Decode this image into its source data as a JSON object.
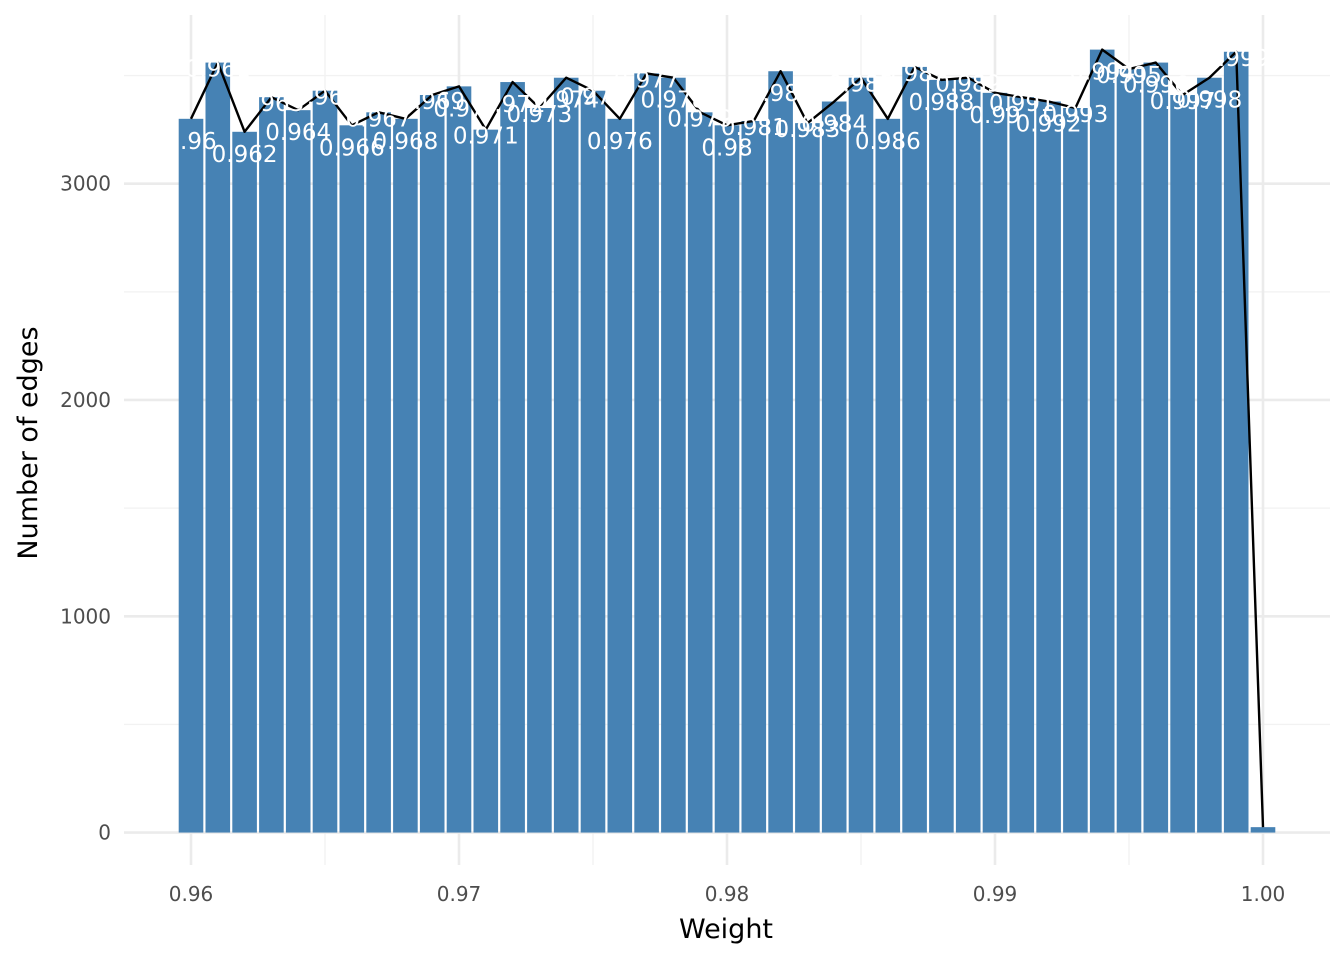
{
  "chart_data": {
    "type": "bar",
    "title": "",
    "xlabel": "Weight",
    "ylabel": "Number of edges",
    "xlim": [
      0.9575,
      1.0025
    ],
    "ylim": [
      -150,
      3780
    ],
    "x_ticks": [
      {
        "value": 0.96,
        "label": "0.96"
      },
      {
        "value": 0.97,
        "label": "0.97"
      },
      {
        "value": 0.98,
        "label": "0.98"
      },
      {
        "value": 0.99,
        "label": "0.99"
      },
      {
        "value": 1.0,
        "label": "1.00"
      }
    ],
    "x_minor_ticks": [
      0.965,
      0.975,
      0.985,
      0.995
    ],
    "y_ticks": [
      {
        "value": 0,
        "label": "0"
      },
      {
        "value": 1000,
        "label": "1000"
      },
      {
        "value": 2000,
        "label": "2000"
      },
      {
        "value": 3000,
        "label": "3000"
      }
    ],
    "y_minor_ticks": [
      500,
      1500,
      2500,
      3500
    ],
    "grid": true,
    "overlay_line": true,
    "colors": {
      "bar": "#4682b4",
      "line": "#000000",
      "label": "#ffffff",
      "grid": "#ebebeb"
    },
    "bars": [
      {
        "x": 0.96,
        "value": 3300,
        "label": "0.96"
      },
      {
        "x": 0.961,
        "value": 3560,
        "label": "0.961"
      },
      {
        "x": 0.962,
        "value": 3240,
        "label": "0.962"
      },
      {
        "x": 0.963,
        "value": 3400,
        "label": "0.963"
      },
      {
        "x": 0.964,
        "value": 3340,
        "label": "0.964"
      },
      {
        "x": 0.965,
        "value": 3430,
        "label": "0.965"
      },
      {
        "x": 0.966,
        "value": 3270,
        "label": "0.966"
      },
      {
        "x": 0.967,
        "value": 3330,
        "label": "0.967"
      },
      {
        "x": 0.968,
        "value": 3300,
        "label": "0.968"
      },
      {
        "x": 0.969,
        "value": 3410,
        "label": "0.969"
      },
      {
        "x": 0.97,
        "value": 3450,
        "label": "0.97"
      },
      {
        "x": 0.971,
        "value": 3250,
        "label": "0.971"
      },
      {
        "x": 0.972,
        "value": 3470,
        "label": "0.972"
      },
      {
        "x": 0.973,
        "value": 3350,
        "label": "0.973"
      },
      {
        "x": 0.974,
        "value": 3490,
        "label": "0.974"
      },
      {
        "x": 0.975,
        "value": 3430,
        "label": "0.975"
      },
      {
        "x": 0.976,
        "value": 3300,
        "label": "0.976"
      },
      {
        "x": 0.977,
        "value": 3510,
        "label": "0.977"
      },
      {
        "x": 0.978,
        "value": 3490,
        "label": "0.978"
      },
      {
        "x": 0.979,
        "value": 3330,
        "label": "0.979"
      },
      {
        "x": 0.98,
        "value": 3270,
        "label": "0.98"
      },
      {
        "x": 0.981,
        "value": 3290,
        "label": "0.981"
      },
      {
        "x": 0.982,
        "value": 3520,
        "label": "0.982"
      },
      {
        "x": 0.983,
        "value": 3280,
        "label": "0.983"
      },
      {
        "x": 0.984,
        "value": 3380,
        "label": "0.984"
      },
      {
        "x": 0.985,
        "value": 3490,
        "label": "0.985"
      },
      {
        "x": 0.986,
        "value": 3300,
        "label": "0.986"
      },
      {
        "x": 0.987,
        "value": 3540,
        "label": "0.987"
      },
      {
        "x": 0.988,
        "value": 3480,
        "label": "0.988"
      },
      {
        "x": 0.989,
        "value": 3490,
        "label": "0.989"
      },
      {
        "x": 0.99,
        "value": 3420,
        "label": "0.99"
      },
      {
        "x": 0.991,
        "value": 3400,
        "label": "0.991"
      },
      {
        "x": 0.992,
        "value": 3380,
        "label": "0.992"
      },
      {
        "x": 0.993,
        "value": 3350,
        "label": "0.993"
      },
      {
        "x": 0.994,
        "value": 3620,
        "label": "0.994"
      },
      {
        "x": 0.995,
        "value": 3530,
        "label": "0.995"
      },
      {
        "x": 0.996,
        "value": 3560,
        "label": "0.996"
      },
      {
        "x": 0.997,
        "value": 3410,
        "label": "0.997"
      },
      {
        "x": 0.998,
        "value": 3490,
        "label": "0.998"
      },
      {
        "x": 0.999,
        "value": 3610,
        "label": "0.999"
      },
      {
        "x": 1.0,
        "value": 25,
        "label": ""
      }
    ]
  }
}
